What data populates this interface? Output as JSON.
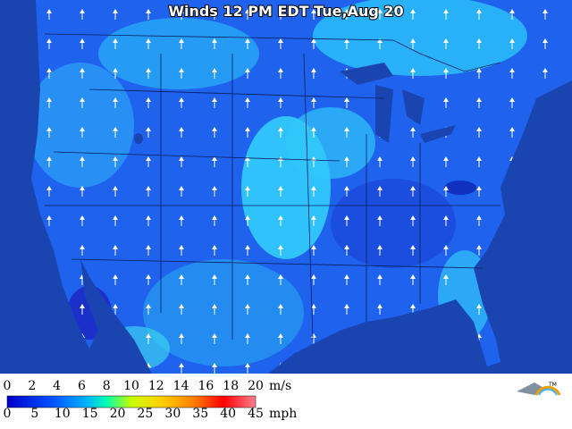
{
  "title": "Winds 12 PM EDT Tue,Aug 20",
  "legend": {
    "ms": {
      "ticks": [
        0,
        2,
        4,
        6,
        8,
        10,
        12,
        14,
        16,
        18,
        20
      ],
      "unit": "m/s"
    },
    "mph": {
      "ticks": [
        0,
        5,
        10,
        15,
        20,
        25,
        30,
        35,
        40,
        45
      ],
      "unit": "mph"
    }
  },
  "logo": "TM"
}
